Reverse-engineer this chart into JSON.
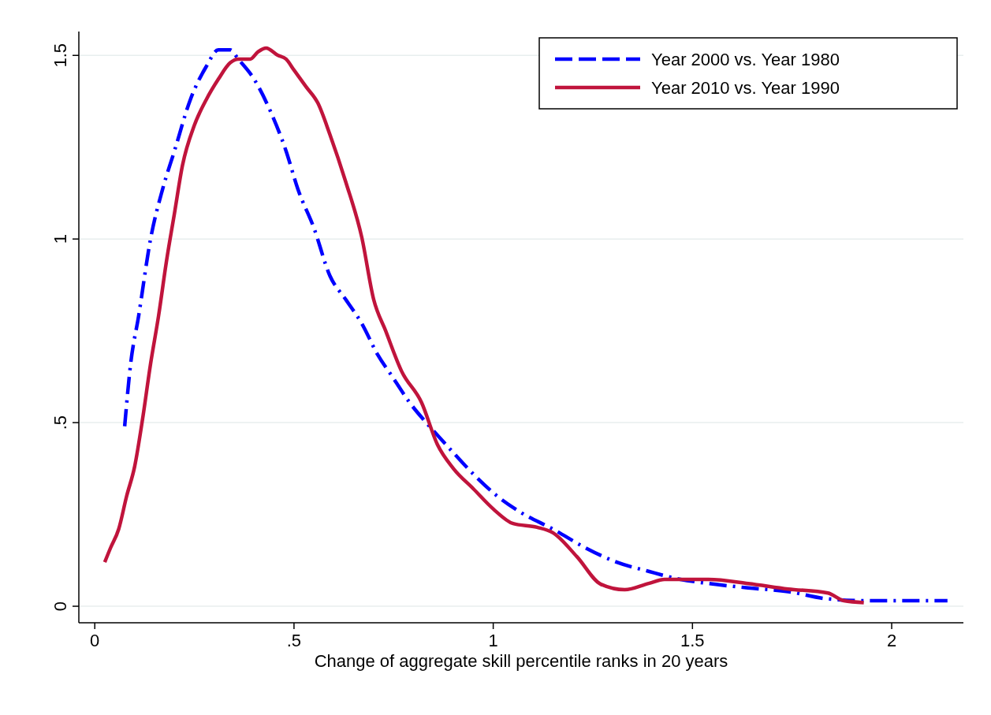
{
  "chart_data": {
    "type": "line",
    "xlabel": "Change of aggregate skill percentile ranks in 20 years",
    "xlim": [
      -0.04,
      2.18
    ],
    "ylim": [
      -0.045,
      1.565
    ],
    "xticks": [
      0,
      {
        "value": 0.5,
        "label": ".5"
      },
      1,
      1.5,
      2
    ],
    "yticks": [
      0,
      {
        "value": 0.5,
        "label": ".5"
      },
      1,
      1.5
    ],
    "grid": "y",
    "legend": "top right",
    "series": [
      {
        "name": "Year 2000 vs. Year 1980",
        "color": "#0000ff",
        "line_style": "dashed",
        "x": [
          0.075,
          0.09,
          0.11,
          0.14,
          0.17,
          0.2,
          0.24,
          0.28,
          0.31,
          0.34,
          0.36,
          0.4,
          0.44,
          0.48,
          0.51,
          0.55,
          0.59,
          0.63,
          0.67,
          0.71,
          0.75,
          0.79,
          0.84,
          0.89,
          0.95,
          1.01,
          1.07,
          1.15,
          1.23,
          1.31,
          1.39,
          1.47,
          1.54,
          1.64,
          1.74,
          1.84,
          1.94,
          2.14
        ],
        "values": [
          0.49,
          0.66,
          0.79,
          1.0,
          1.135,
          1.24,
          1.38,
          1.47,
          1.515,
          1.515,
          1.49,
          1.435,
          1.35,
          1.24,
          1.135,
          1.03,
          0.9,
          0.835,
          0.77,
          0.685,
          0.62,
          0.555,
          0.49,
          0.43,
          0.36,
          0.3,
          0.255,
          0.21,
          0.16,
          0.12,
          0.095,
          0.073,
          0.062,
          0.05,
          0.04,
          0.02,
          0.015,
          0.015
        ]
      },
      {
        "name": "Year 2010 vs. Year 1990",
        "color": "#c0143c",
        "line_style": "solid",
        "x": [
          0.025,
          0.04,
          0.06,
          0.08,
          0.1,
          0.12,
          0.14,
          0.16,
          0.18,
          0.2,
          0.22,
          0.25,
          0.28,
          0.31,
          0.34,
          0.36,
          0.39,
          0.41,
          0.43,
          0.46,
          0.48,
          0.5,
          0.53,
          0.56,
          0.59,
          0.63,
          0.67,
          0.7,
          0.73,
          0.77,
          0.82,
          0.86,
          0.9,
          0.95,
          1.0,
          1.05,
          1.11,
          1.15,
          1.21,
          1.27,
          1.33,
          1.39,
          1.43,
          1.54,
          1.64,
          1.74,
          1.84,
          1.88,
          1.93
        ],
        "values": [
          0.12,
          0.16,
          0.21,
          0.3,
          0.38,
          0.51,
          0.66,
          0.79,
          0.94,
          1.07,
          1.2,
          1.31,
          1.38,
          1.435,
          1.48,
          1.49,
          1.49,
          1.51,
          1.52,
          1.5,
          1.49,
          1.46,
          1.415,
          1.37,
          1.285,
          1.155,
          1.005,
          0.835,
          0.75,
          0.64,
          0.555,
          0.44,
          0.375,
          0.32,
          0.265,
          0.225,
          0.215,
          0.2,
          0.135,
          0.06,
          0.045,
          0.062,
          0.073,
          0.073,
          0.062,
          0.047,
          0.036,
          0.015,
          0.01
        ]
      }
    ]
  }
}
